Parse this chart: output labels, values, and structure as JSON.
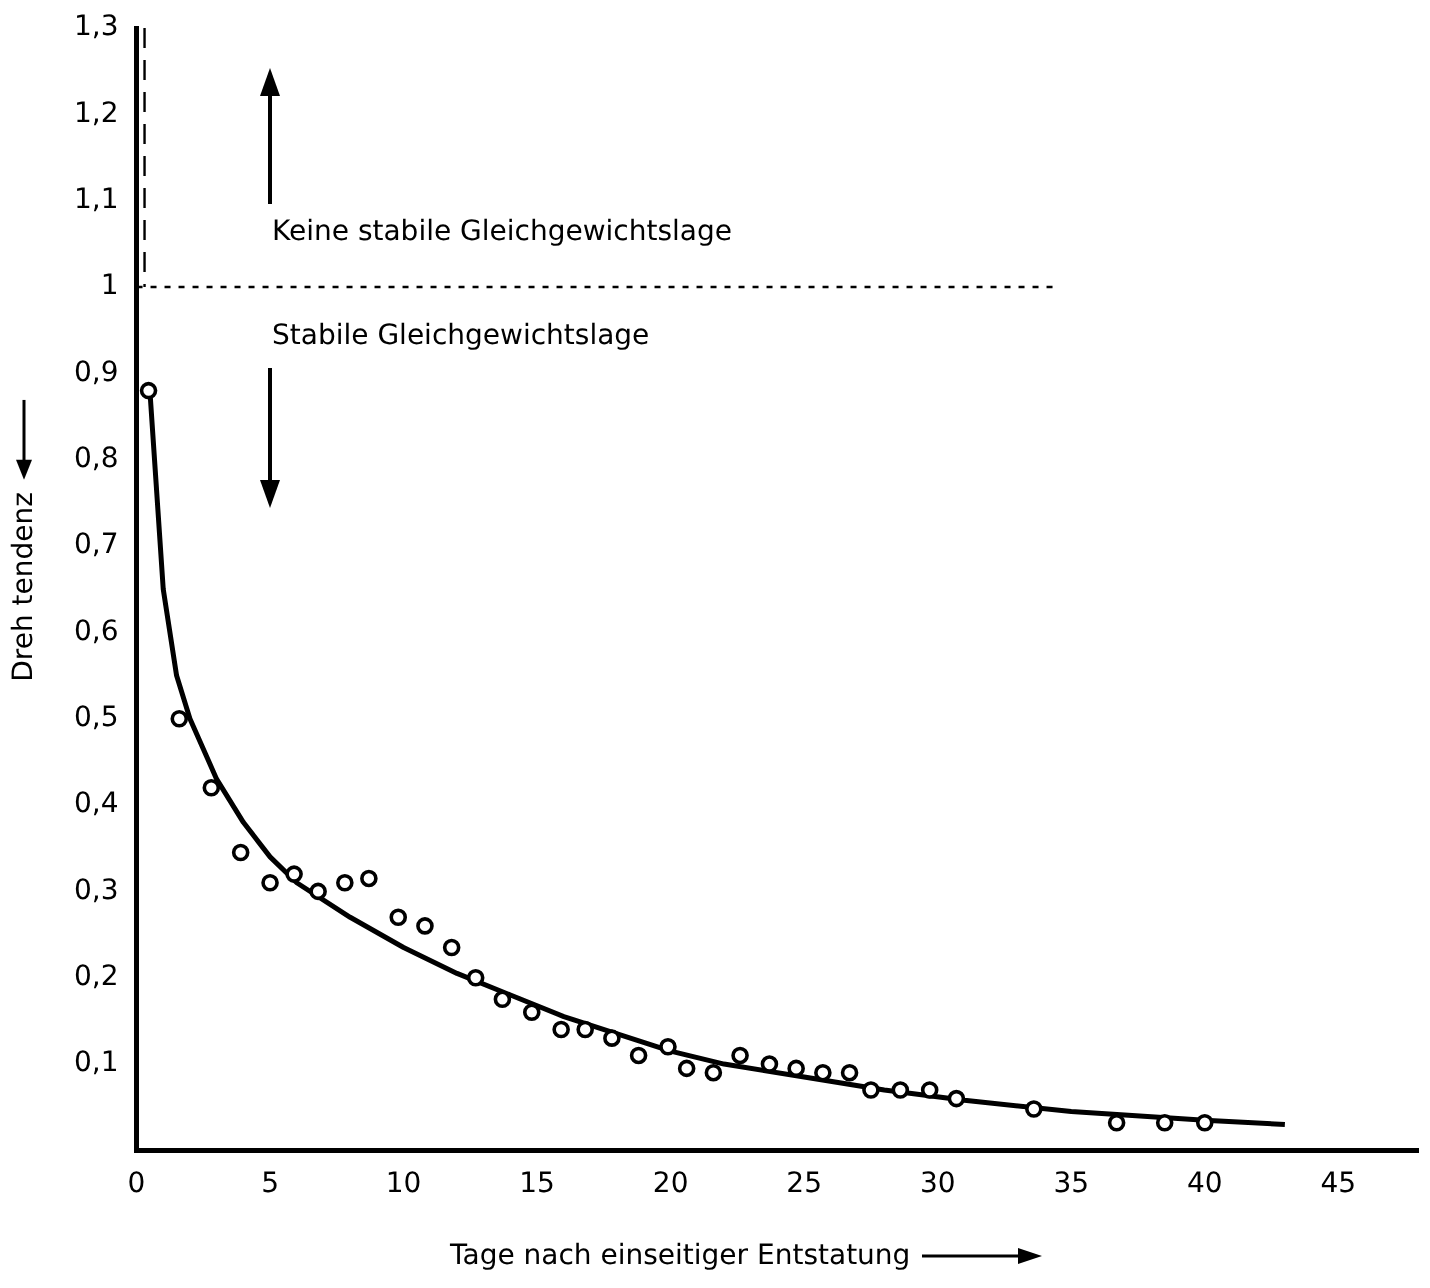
{
  "chart_data": {
    "type": "scatter",
    "xlabel": "Tage nach einseitiger Entstatung",
    "ylabel": "Dreh tendenz",
    "annotations": [
      "Keine stabile Gleichgewichtslage",
      "Stabile Gleichgewichtslage"
    ],
    "xlim": [
      0,
      48
    ],
    "xticks": [
      0,
      5,
      10,
      15,
      20,
      25,
      30,
      35,
      40,
      45
    ],
    "ylim": [
      0,
      1.3
    ],
    "yticks": [
      {
        "value": 0,
        "label": null
      },
      {
        "value": 0.1,
        "label": "0,1"
      },
      {
        "value": 0.2,
        "label": "0,2"
      },
      {
        "value": 0.3,
        "label": "0,3"
      },
      {
        "value": 0.4,
        "label": "0,4"
      },
      {
        "value": 0.5,
        "label": "0,5"
      },
      {
        "value": 0.6,
        "label": "0,6"
      },
      {
        "value": 0.7,
        "label": "0,7"
      },
      {
        "value": 0.8,
        "label": "0,8"
      },
      {
        "value": 0.9,
        "label": "0,9"
      },
      1,
      {
        "value": 1.1,
        "label": "1,1"
      },
      {
        "value": 1.2,
        "label": "1,2"
      },
      {
        "value": 1.3,
        "label": "1,3"
      }
    ],
    "grid": false,
    "legend": false,
    "marker": "circle",
    "ref_lines": [
      {
        "axis": "y",
        "value": 1,
        "line_style": "dotted",
        "color": "#000000"
      },
      {
        "axis": "x",
        "value": 0.3,
        "line_style": "dashed",
        "color": "#000000"
      }
    ],
    "series": [
      {
        "type": "scatter",
        "color": "#000000",
        "x": [
          0.45,
          1.6,
          2.8,
          3.9,
          5.0,
          5.9,
          6.8,
          7.8,
          8.7,
          9.8,
          10.8,
          11.8,
          12.7,
          13.7,
          14.8,
          15.9,
          16.8,
          17.8,
          18.8,
          19.9,
          20.6,
          21.6,
          22.6,
          23.7,
          24.7,
          25.7,
          26.7,
          27.5,
          28.6,
          29.7,
          30.7,
          33.6,
          36.7,
          38.5,
          40.0
        ],
        "values": [
          0.88,
          0.5,
          0.42,
          0.345,
          0.31,
          0.32,
          0.3,
          0.31,
          0.315,
          0.27,
          0.26,
          0.235,
          0.2,
          0.175,
          0.16,
          0.14,
          0.14,
          0.13,
          0.11,
          0.12,
          0.095,
          0.09,
          0.11,
          0.1,
          0.095,
          0.09,
          0.09,
          0.07,
          0.07,
          0.07,
          0.06,
          0.048,
          0.032,
          0.032,
          0.032
        ]
      },
      {
        "type": "line",
        "color": "#000000",
        "marker": "none",
        "x": [
          0.5,
          1,
          1.5,
          2,
          3,
          4,
          5,
          6,
          8,
          10,
          12,
          14,
          16,
          18,
          20,
          22,
          25,
          28,
          31,
          35,
          40,
          43
        ],
        "values": [
          0.88,
          0.65,
          0.55,
          0.5,
          0.43,
          0.38,
          0.34,
          0.31,
          0.27,
          0.235,
          0.205,
          0.18,
          0.155,
          0.135,
          0.115,
          0.1,
          0.085,
          0.07,
          0.058,
          0.045,
          0.035,
          0.03
        ]
      }
    ]
  }
}
